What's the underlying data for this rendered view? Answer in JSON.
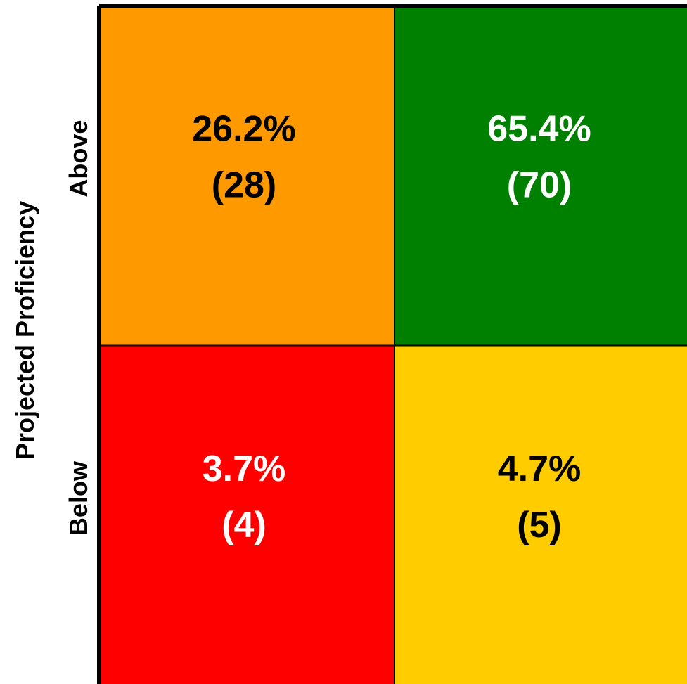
{
  "chart_data": {
    "type": "heatmap",
    "title": "",
    "ylabel": "Projected Proficiency",
    "y_categories": [
      "Above",
      "Below"
    ],
    "x_categories": [
      "",
      ""
    ],
    "cells": [
      {
        "row": "Above",
        "col": 0,
        "percent": "26.2%",
        "count": "(28)",
        "percent_value": 26.2,
        "count_value": 28,
        "color": "#FF9900",
        "text_color": "#000000"
      },
      {
        "row": "Above",
        "col": 1,
        "percent": "65.4%",
        "count": "(70)",
        "percent_value": 65.4,
        "count_value": 70,
        "color": "#008000",
        "text_color": "#FFFFFF"
      },
      {
        "row": "Below",
        "col": 0,
        "percent": "3.7%",
        "count": "(4)",
        "percent_value": 3.7,
        "count_value": 4,
        "color": "#FF0000",
        "text_color": "#FFFFFF"
      },
      {
        "row": "Below",
        "col": 1,
        "percent": "4.7%",
        "count": "(5)",
        "percent_value": 4.7,
        "count_value": 5,
        "color": "#FFCC00",
        "text_color": "#000000"
      }
    ]
  }
}
